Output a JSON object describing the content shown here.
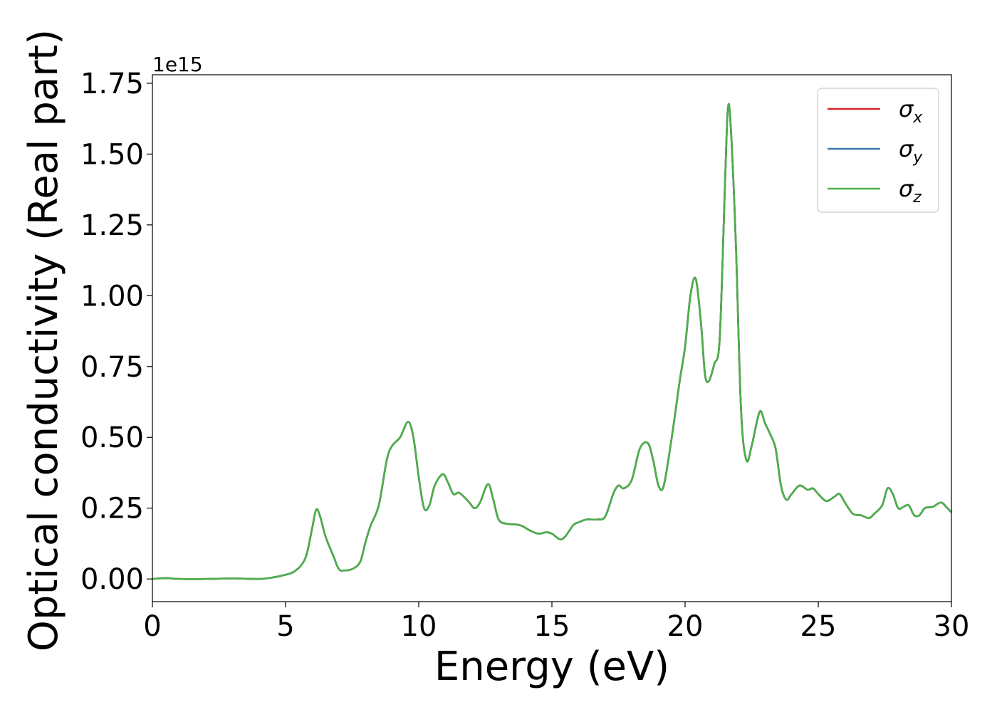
{
  "chart_data": {
    "type": "line",
    "xlabel": "Energy (eV)",
    "ylabel": "Optical conductivity (Real part)",
    "y_scale_label": "1e15",
    "xlim": [
      0,
      30
    ],
    "ylim": [
      -0.08,
      1.78
    ],
    "xticks": [
      0,
      5,
      10,
      15,
      20,
      25,
      30
    ],
    "xtick_labels": [
      "0",
      "5",
      "10",
      "15",
      "20",
      "25",
      "30"
    ],
    "yticks": [
      0.0,
      0.25,
      0.5,
      0.75,
      1.0,
      1.25,
      1.5,
      1.75
    ],
    "ytick_labels": [
      "0.00",
      "0.25",
      "0.50",
      "0.75",
      "1.00",
      "1.25",
      "1.50",
      "1.75"
    ],
    "grid": false,
    "legend_position": "top-right",
    "legend": [
      {
        "symbol": "σ",
        "sub": "x",
        "color": "#d62728"
      },
      {
        "symbol": "σ",
        "sub": "y",
        "color": "#3b78b0"
      },
      {
        "symbol": "σ",
        "sub": "z",
        "color": "#4daf4a"
      }
    ],
    "x": [
      0,
      0.5,
      1,
      2,
      3,
      4,
      4.5,
      5,
      5.3,
      5.6,
      5.8,
      6.0,
      6.15,
      6.3,
      6.5,
      6.8,
      7.0,
      7.2,
      7.5,
      7.8,
      8.0,
      8.2,
      8.5,
      8.8,
      9.0,
      9.3,
      9.6,
      9.8,
      10.0,
      10.2,
      10.4,
      10.6,
      10.9,
      11.1,
      11.3,
      11.5,
      11.7,
      11.9,
      12.1,
      12.3,
      12.6,
      12.8,
      13.0,
      13.3,
      13.8,
      14.2,
      14.5,
      14.8,
      15.0,
      15.3,
      15.5,
      15.8,
      16.0,
      16.3,
      16.7,
      17.0,
      17.3,
      17.5,
      17.7,
      18.0,
      18.3,
      18.6,
      18.8,
      19.0,
      19.2,
      19.5,
      19.8,
      20.0,
      20.2,
      20.4,
      20.6,
      20.75,
      20.9,
      21.1,
      21.3,
      21.5,
      21.6,
      21.7,
      21.9,
      22.1,
      22.3,
      22.5,
      22.8,
      23.0,
      23.2,
      23.4,
      23.6,
      23.8,
      24.0,
      24.3,
      24.6,
      24.8,
      25.0,
      25.3,
      25.6,
      25.8,
      26.0,
      26.3,
      26.6,
      26.9,
      27.1,
      27.4,
      27.6,
      27.8,
      28.0,
      28.2,
      28.4,
      28.6,
      28.8,
      29.0,
      29.3,
      29.6,
      29.8,
      30.0
    ],
    "series": [
      {
        "name": "σx",
        "color": "#d62728",
        "values": [
          0.0,
          0.003,
          0.0,
          0.0,
          0.002,
          0.0,
          0.005,
          0.015,
          0.025,
          0.05,
          0.09,
          0.18,
          0.245,
          0.22,
          0.15,
          0.08,
          0.035,
          0.03,
          0.035,
          0.06,
          0.13,
          0.19,
          0.26,
          0.42,
          0.47,
          0.5,
          0.555,
          0.5,
          0.36,
          0.25,
          0.26,
          0.33,
          0.37,
          0.34,
          0.3,
          0.305,
          0.29,
          0.27,
          0.25,
          0.27,
          0.335,
          0.28,
          0.21,
          0.195,
          0.19,
          0.17,
          0.16,
          0.165,
          0.16,
          0.14,
          0.15,
          0.19,
          0.2,
          0.21,
          0.21,
          0.22,
          0.3,
          0.33,
          0.32,
          0.35,
          0.46,
          0.48,
          0.42,
          0.33,
          0.33,
          0.5,
          0.7,
          0.82,
          1.0,
          1.06,
          0.9,
          0.72,
          0.7,
          0.76,
          0.85,
          1.4,
          1.65,
          1.62,
          1.2,
          0.6,
          0.42,
          0.47,
          0.59,
          0.55,
          0.51,
          0.46,
          0.33,
          0.28,
          0.3,
          0.33,
          0.315,
          0.32,
          0.3,
          0.275,
          0.29,
          0.3,
          0.27,
          0.23,
          0.225,
          0.215,
          0.23,
          0.26,
          0.32,
          0.3,
          0.25,
          0.255,
          0.26,
          0.225,
          0.225,
          0.25,
          0.255,
          0.27,
          0.255,
          0.235
        ]
      },
      {
        "name": "σy",
        "color": "#3b78b0",
        "values": [
          0.0,
          0.003,
          0.0,
          0.0,
          0.002,
          0.0,
          0.005,
          0.015,
          0.025,
          0.05,
          0.09,
          0.18,
          0.245,
          0.22,
          0.15,
          0.08,
          0.035,
          0.03,
          0.035,
          0.06,
          0.13,
          0.19,
          0.26,
          0.42,
          0.47,
          0.5,
          0.555,
          0.5,
          0.36,
          0.25,
          0.26,
          0.33,
          0.37,
          0.34,
          0.3,
          0.305,
          0.29,
          0.27,
          0.25,
          0.27,
          0.335,
          0.28,
          0.21,
          0.195,
          0.19,
          0.17,
          0.16,
          0.165,
          0.16,
          0.14,
          0.15,
          0.19,
          0.2,
          0.21,
          0.21,
          0.22,
          0.3,
          0.33,
          0.32,
          0.35,
          0.46,
          0.48,
          0.42,
          0.33,
          0.33,
          0.5,
          0.7,
          0.82,
          1.0,
          1.06,
          0.9,
          0.72,
          0.7,
          0.76,
          0.85,
          1.4,
          1.65,
          1.62,
          1.2,
          0.6,
          0.42,
          0.47,
          0.59,
          0.55,
          0.51,
          0.46,
          0.33,
          0.28,
          0.3,
          0.33,
          0.315,
          0.32,
          0.3,
          0.275,
          0.29,
          0.3,
          0.27,
          0.23,
          0.225,
          0.215,
          0.23,
          0.26,
          0.32,
          0.3,
          0.25,
          0.255,
          0.26,
          0.225,
          0.225,
          0.25,
          0.255,
          0.27,
          0.255,
          0.235
        ]
      },
      {
        "name": "σz",
        "color": "#4daf4a",
        "values": [
          0.0,
          0.003,
          0.0,
          0.0,
          0.002,
          0.0,
          0.005,
          0.015,
          0.025,
          0.05,
          0.09,
          0.18,
          0.245,
          0.22,
          0.15,
          0.08,
          0.035,
          0.03,
          0.035,
          0.06,
          0.13,
          0.19,
          0.26,
          0.42,
          0.47,
          0.5,
          0.555,
          0.5,
          0.36,
          0.25,
          0.26,
          0.33,
          0.37,
          0.34,
          0.3,
          0.305,
          0.29,
          0.27,
          0.25,
          0.27,
          0.335,
          0.28,
          0.21,
          0.195,
          0.19,
          0.17,
          0.16,
          0.165,
          0.16,
          0.14,
          0.15,
          0.19,
          0.2,
          0.21,
          0.21,
          0.22,
          0.3,
          0.33,
          0.32,
          0.35,
          0.46,
          0.48,
          0.42,
          0.33,
          0.33,
          0.5,
          0.7,
          0.82,
          1.0,
          1.06,
          0.9,
          0.72,
          0.7,
          0.76,
          0.85,
          1.4,
          1.65,
          1.62,
          1.2,
          0.6,
          0.42,
          0.47,
          0.59,
          0.55,
          0.51,
          0.46,
          0.33,
          0.28,
          0.3,
          0.33,
          0.315,
          0.32,
          0.3,
          0.275,
          0.29,
          0.3,
          0.27,
          0.23,
          0.225,
          0.215,
          0.23,
          0.26,
          0.32,
          0.3,
          0.25,
          0.255,
          0.26,
          0.225,
          0.225,
          0.25,
          0.255,
          0.27,
          0.255,
          0.235
        ]
      }
    ]
  }
}
